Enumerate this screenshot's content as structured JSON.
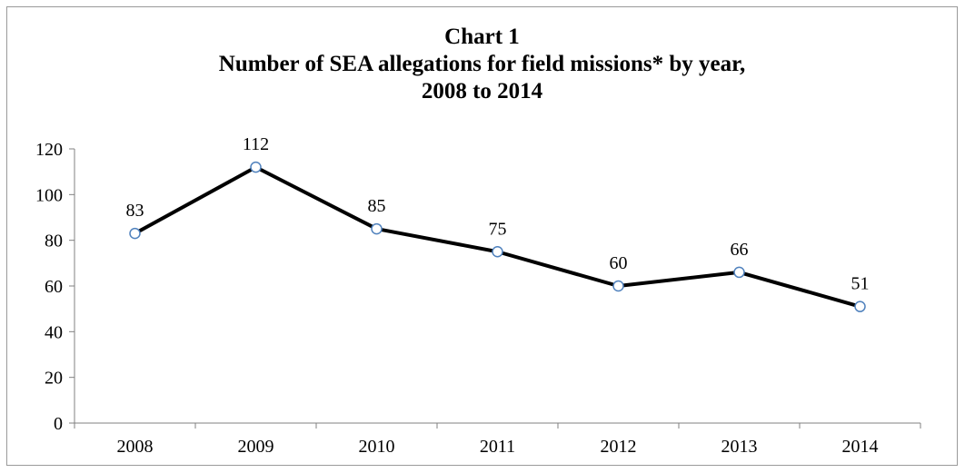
{
  "chart_data": {
    "type": "line",
    "title": [
      "Chart 1",
      "Number of SEA allegations for field missions* by year,",
      "2008 to 2014"
    ],
    "xlabel": "",
    "ylabel": "",
    "categories": [
      "2008",
      "2009",
      "2010",
      "2011",
      "2012",
      "2013",
      "2014"
    ],
    "series": [
      {
        "values": [
          83,
          112,
          85,
          75,
          60,
          66,
          51
        ],
        "data_labels": [
          "83",
          "112",
          "85",
          "75",
          "60",
          "66",
          "51"
        ]
      }
    ],
    "ylim": [
      0,
      120
    ],
    "yticks": [
      "0",
      "20",
      "40",
      "60",
      "80",
      "100",
      "120"
    ],
    "grid": false,
    "legend": "none",
    "colors": {
      "line": "#000000",
      "marker_fill": "#ffffff",
      "marker_stroke": "#4f81bd",
      "axis": "#808080",
      "frame": "#9a9a9a"
    }
  }
}
